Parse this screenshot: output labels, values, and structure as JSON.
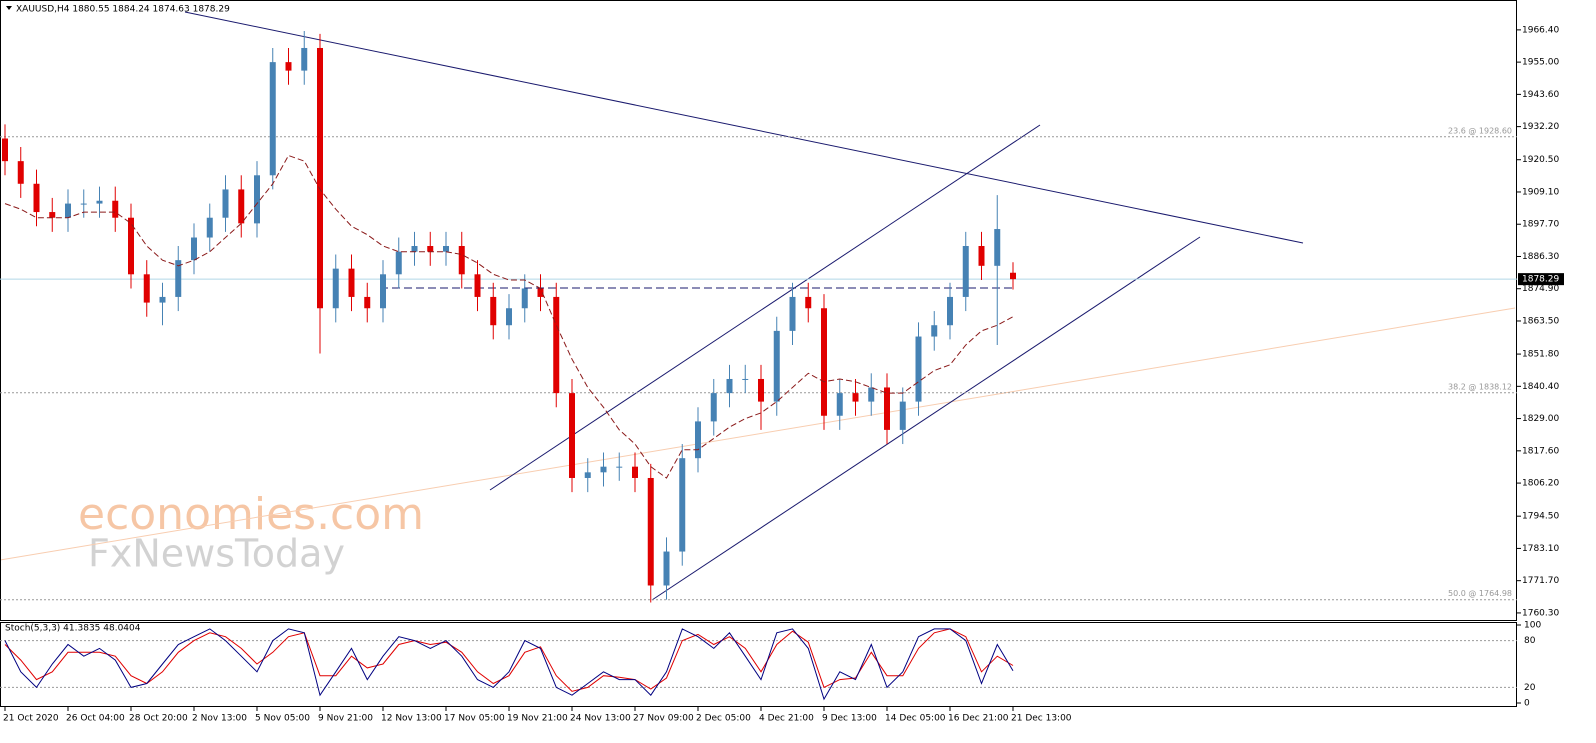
{
  "chart_data": {
    "type": "candlestick",
    "title": "XAUUSD,H4  1880.55 1884.24 1874.63 1878.29",
    "categories": [
      "21 Oct 2020",
      null,
      null,
      null,
      "26 Oct 04:00",
      null,
      null,
      null,
      "28 Oct 20:00",
      null,
      null,
      null,
      "2 Nov 13:00",
      null,
      null,
      null,
      "5 Nov 05:00",
      null,
      null,
      null,
      "9 Nov 21:00",
      null,
      null,
      null,
      "12 Nov 13:00",
      null,
      null,
      null,
      "17 Nov 05:00",
      null,
      null,
      null,
      "19 Nov 21:00",
      null,
      null,
      null,
      "24 Nov 13:00",
      null,
      null,
      null,
      "27 Nov 09:00",
      null,
      null,
      null,
      "2 Dec 05:00",
      null,
      null,
      null,
      "4 Dec 21:00",
      null,
      null,
      null,
      "9 Dec 13:00",
      null,
      null,
      null,
      "14 Dec 05:00",
      null,
      null,
      null,
      "16 Dec 21:00",
      null,
      null,
      null,
      "21 Dec 13:00"
    ],
    "open": [
      1928,
      1920,
      1912,
      1902,
      1900,
      1905,
      1905,
      1906,
      1900,
      1880,
      1870,
      1872,
      1885,
      1893,
      1900,
      1910,
      1898,
      1915,
      1955,
      1952,
      1960,
      1868,
      1882,
      1872,
      1868,
      1880,
      1888,
      1890,
      1888,
      1890,
      1880,
      1872,
      1862,
      1868,
      1875,
      1872,
      1838,
      1808,
      1810,
      1812,
      1812,
      1808,
      1770,
      1782,
      1815,
      1828,
      1838,
      1843,
      1843,
      1835,
      1860,
      1872,
      1868,
      1830,
      1838,
      1835,
      1840,
      1825,
      1835,
      1858,
      1862,
      1872,
      1890,
      1883,
      1880.55
    ],
    "high": [
      1933,
      1925,
      1917,
      1907,
      1910,
      1910,
      1911,
      1911,
      1905,
      1885,
      1877,
      1890,
      1898,
      1905,
      1915,
      1915,
      1920,
      1960,
      1960,
      1966,
      1965,
      1887,
      1887,
      1877,
      1885,
      1893,
      1895,
      1895,
      1895,
      1895,
      1885,
      1877,
      1873,
      1880,
      1880,
      1877,
      1843,
      1815,
      1817,
      1817,
      1817,
      1813,
      1787,
      1820,
      1833,
      1843,
      1848,
      1848,
      1848,
      1865,
      1877,
      1877,
      1873,
      1843,
      1843,
      1845,
      1845,
      1840,
      1863,
      1867,
      1877,
      1895,
      1895,
      1908,
      1884.24
    ],
    "low": [
      1915,
      1907,
      1897,
      1895,
      1895,
      1900,
      1900,
      1895,
      1875,
      1865,
      1862,
      1867,
      1880,
      1888,
      1895,
      1893,
      1893,
      1910,
      1947,
      1947,
      1852,
      1863,
      1867,
      1863,
      1863,
      1875,
      1883,
      1883,
      1883,
      1875,
      1867,
      1857,
      1857,
      1863,
      1867,
      1833,
      1803,
      1803,
      1805,
      1807,
      1803,
      1764,
      1765,
      1777,
      1810,
      1823,
      1833,
      1838,
      1825,
      1830,
      1855,
      1863,
      1825,
      1825,
      1830,
      1830,
      1820,
      1820,
      1830,
      1853,
      1857,
      1867,
      1878,
      1855,
      1874.63
    ],
    "close": [
      1920,
      1912,
      1902,
      1900,
      1905,
      1905,
      1906,
      1900,
      1880,
      1870,
      1872,
      1885,
      1893,
      1900,
      1910,
      1898,
      1915,
      1955,
      1952,
      1960,
      1868,
      1882,
      1872,
      1868,
      1880,
      1888,
      1890,
      1888,
      1890,
      1880,
      1872,
      1862,
      1868,
      1875,
      1872,
      1838,
      1808,
      1810,
      1812,
      1812,
      1808,
      1770,
      1782,
      1815,
      1828,
      1838,
      1843,
      1843,
      1835,
      1860,
      1872,
      1868,
      1830,
      1838,
      1835,
      1840,
      1825,
      1835,
      1858,
      1862,
      1872,
      1890,
      1883,
      1896,
      1878.29
    ],
    "moving_average": [
      1905,
      1903,
      1900,
      1900,
      1900,
      1902,
      1902,
      1902,
      1898,
      1890,
      1885,
      1883,
      1885,
      1888,
      1893,
      1898,
      1905,
      1912,
      1922,
      1920,
      1910,
      1903,
      1897,
      1894,
      1890,
      1888,
      1888,
      1888,
      1888,
      1887,
      1884,
      1880,
      1878,
      1878,
      1875,
      1862,
      1850,
      1840,
      1833,
      1825,
      1820,
      1812,
      1808,
      1818,
      1818,
      1822,
      1826,
      1829,
      1831,
      1835,
      1840,
      1845,
      1842,
      1843,
      1842,
      1840,
      1838,
      1838,
      1842,
      1846,
      1848,
      1855,
      1860,
      1862,
      1865
    ],
    "up_color": "#4682b4",
    "down_color": "#e00000",
    "ma_color": "#8b1a1a",
    "ylim": [
      1757.8,
      1975.9
    ],
    "yticks": [
      {
        "value": 1760.3,
        "label": "1760.30"
      },
      {
        "value": 1771.7,
        "label": "1771.70"
      },
      {
        "value": 1783.1,
        "label": "1783.10"
      },
      {
        "value": 1794.5,
        "label": "1794.50"
      },
      {
        "value": 1806.2,
        "label": "1806.20"
      },
      {
        "value": 1817.6,
        "label": "1817.60"
      },
      {
        "value": 1829,
        "label": "1829.00"
      },
      {
        "value": 1840.4,
        "label": "1840.40"
      },
      {
        "value": 1851.8,
        "label": "1851.80"
      },
      {
        "value": 1863.5,
        "label": "1863.50"
      },
      {
        "value": 1874.9,
        "label": "1874.90"
      },
      {
        "value": 1886.3,
        "label": "1886.30"
      },
      {
        "value": 1897.7,
        "label": "1897.70"
      },
      {
        "value": 1909.1,
        "label": "1909.10"
      },
      {
        "value": 1920.5,
        "label": "1920.50"
      },
      {
        "value": 1932.2,
        "label": "1932.20"
      },
      {
        "value": 1943.6,
        "label": "1943.60"
      },
      {
        "value": 1955,
        "label": "1955.00"
      },
      {
        "value": 1966.4,
        "label": "1966.40"
      }
    ],
    "current_price": 1878.29,
    "fib_levels": [
      {
        "value": 1928.6,
        "label": "23.6 @ 1928.60"
      },
      {
        "value": 1838.12,
        "label": "38.2 @ 1838.12"
      },
      {
        "value": 1764.98,
        "label": "50.0 @ 1764.98"
      }
    ],
    "stochastic": {
      "title": "Stoch(5,3,3) 41.3835 48.0404",
      "ylim": [
        0,
        100
      ],
      "yticks": [
        0,
        20,
        80,
        100
      ],
      "main_color": "#000080",
      "signal_color": "#e00000",
      "main": [
        80,
        40,
        20,
        50,
        75,
        60,
        70,
        55,
        20,
        25,
        50,
        75,
        85,
        95,
        80,
        60,
        40,
        80,
        95,
        90,
        10,
        40,
        70,
        30,
        60,
        85,
        80,
        70,
        80,
        60,
        30,
        20,
        40,
        80,
        70,
        20,
        10,
        25,
        40,
        30,
        30,
        10,
        40,
        95,
        85,
        70,
        90,
        60,
        30,
        90,
        95,
        70,
        5,
        40,
        30,
        75,
        20,
        40,
        85,
        95,
        95,
        80,
        25,
        75,
        41.38
      ],
      "signal": [
        75,
        55,
        30,
        40,
        65,
        65,
        65,
        60,
        35,
        25,
        40,
        65,
        80,
        90,
        85,
        70,
        50,
        65,
        85,
        90,
        35,
        35,
        60,
        45,
        50,
        75,
        80,
        75,
        78,
        65,
        40,
        25,
        35,
        65,
        72,
        35,
        15,
        20,
        35,
        33,
        30,
        18,
        32,
        80,
        88,
        75,
        85,
        70,
        40,
        75,
        92,
        78,
        20,
        30,
        32,
        65,
        35,
        35,
        70,
        90,
        95,
        85,
        40,
        60,
        48.04
      ]
    }
  },
  "watermark": [
    "economies.com",
    "FxNewsToday"
  ]
}
